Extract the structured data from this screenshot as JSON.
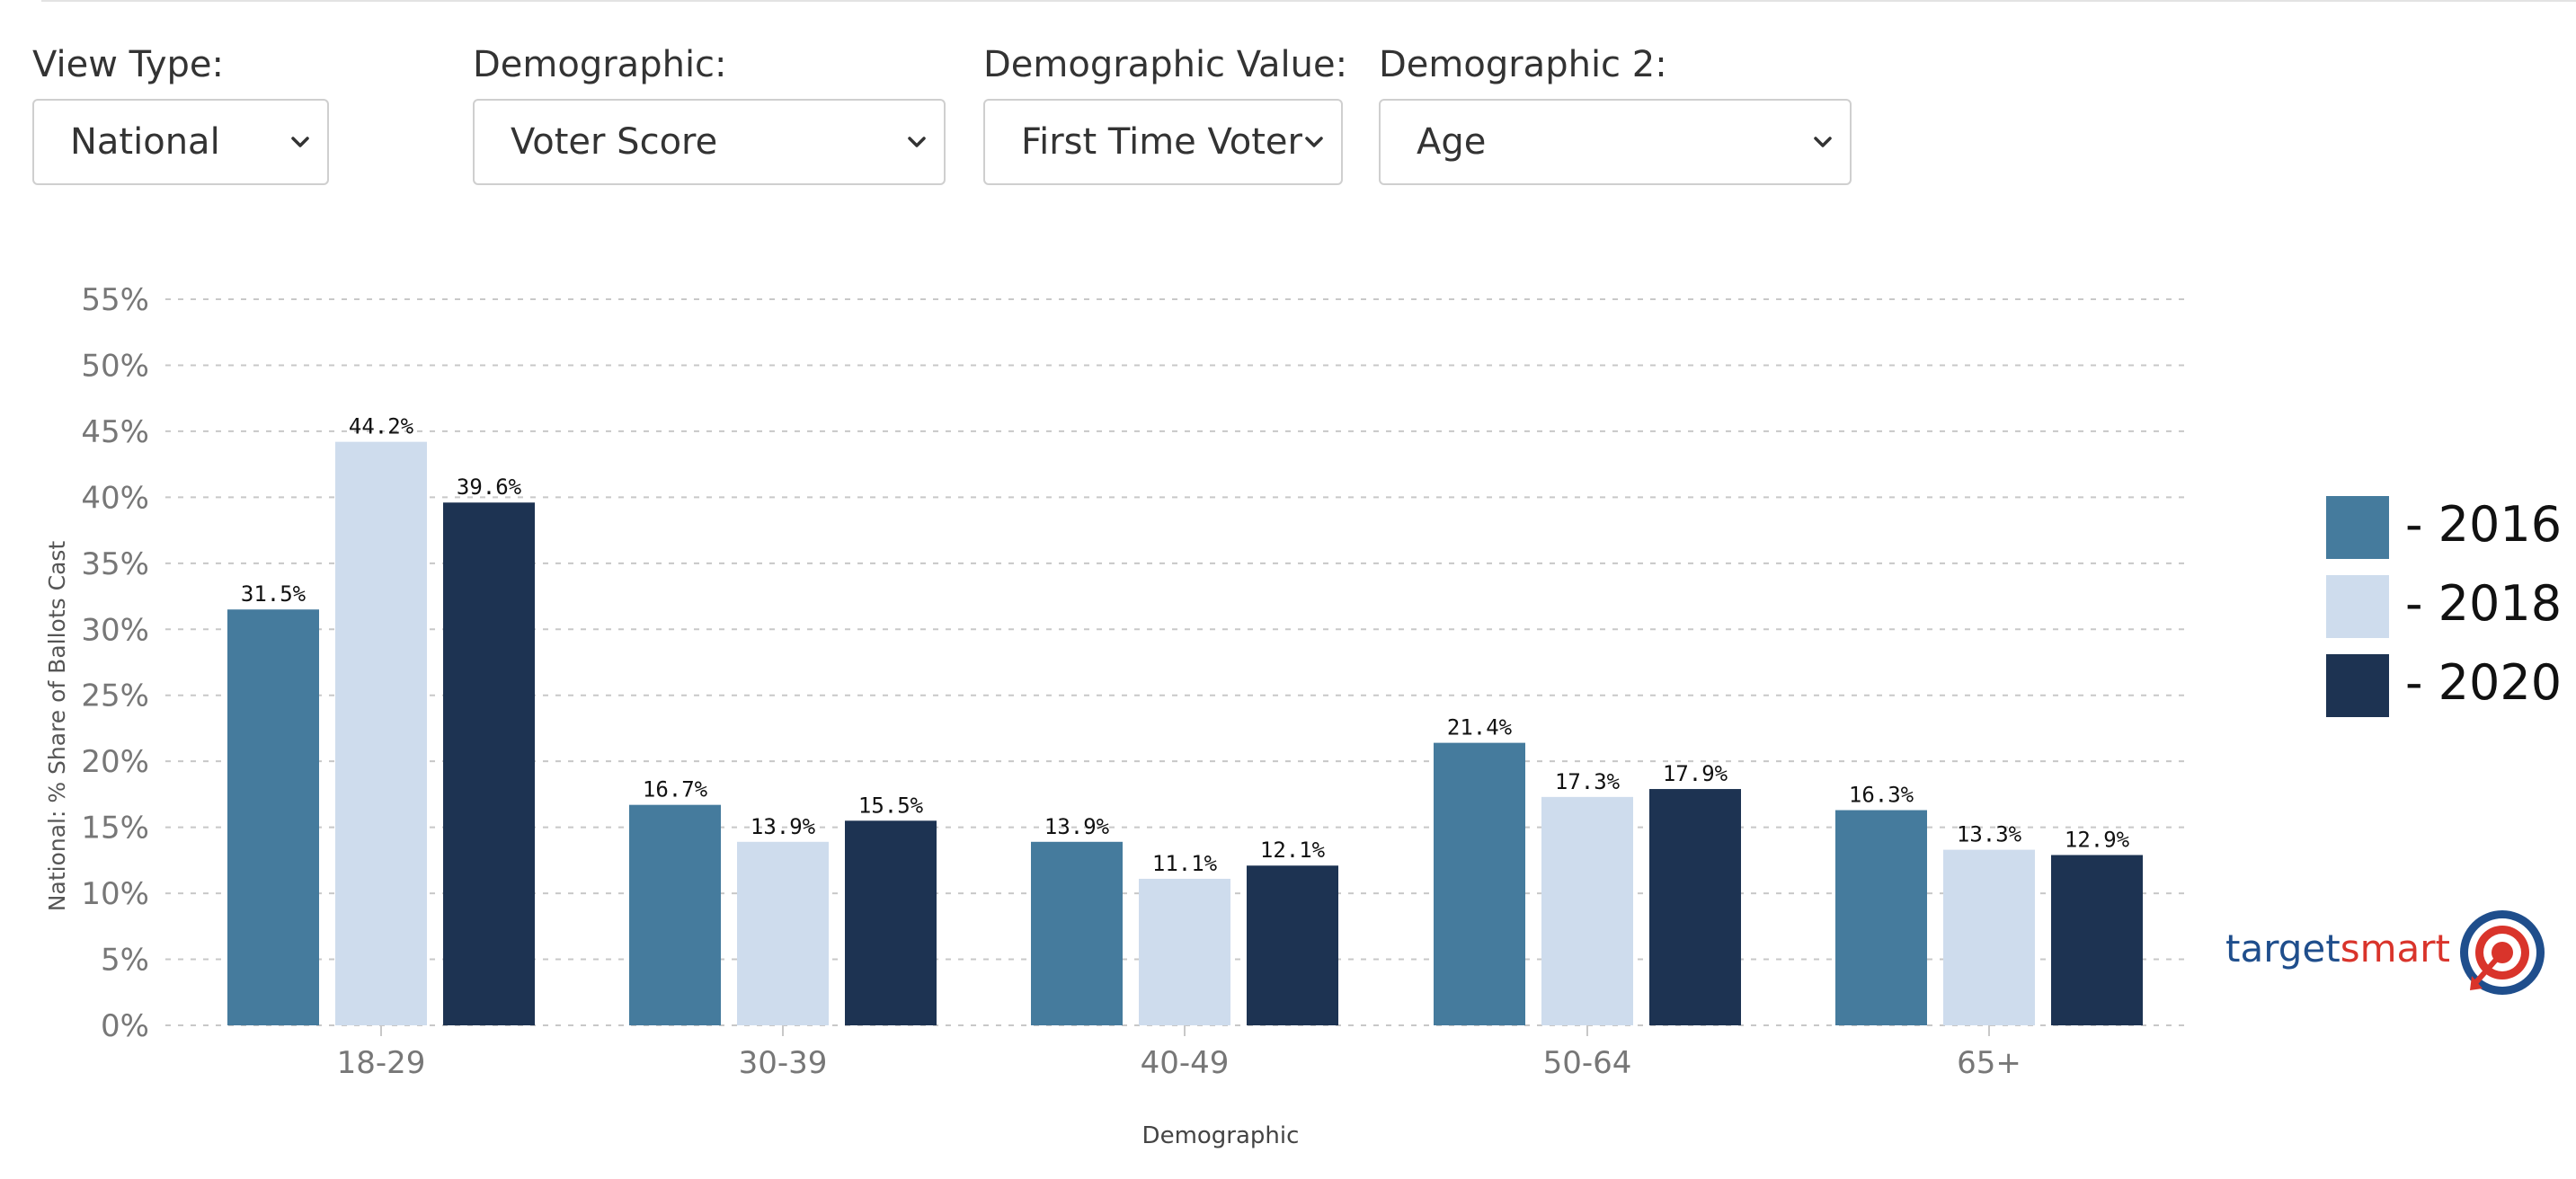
{
  "filters": [
    {
      "label": "View Type:",
      "value": "National"
    },
    {
      "label": "Demographic:",
      "value": "Voter Score"
    },
    {
      "label": "Demographic Value:",
      "value": "First Time Voter"
    },
    {
      "label": "Demographic 2:",
      "value": "Age"
    }
  ],
  "logo": {
    "part1": "target",
    "part2": "smart",
    "color1": "#1f4e8c",
    "color2": "#d9342b"
  },
  "chart_data": {
    "type": "bar",
    "categories": [
      "18-29",
      "30-39",
      "40-49",
      "50-64",
      "65+"
    ],
    "series": [
      {
        "name": "- 2016",
        "color": "#457b9d",
        "values": [
          31.5,
          16.7,
          13.9,
          21.4,
          16.3
        ],
        "labels": [
          "31.5%",
          "16.7%",
          "13.9%",
          "21.4%",
          "16.3%"
        ]
      },
      {
        "name": "- 2018",
        "color": "#cedced",
        "values": [
          44.2,
          13.9,
          11.1,
          17.3,
          13.3
        ],
        "labels": [
          "44.2%",
          "13.9%",
          "11.1%",
          "17.3%",
          "13.3%"
        ]
      },
      {
        "name": "- 2020",
        "color": "#1d3352",
        "values": [
          39.6,
          15.5,
          12.1,
          17.9,
          12.9
        ],
        "labels": [
          "39.6%",
          "15.5%",
          "12.1%",
          "17.9%",
          "12.9%"
        ]
      }
    ],
    "yticks": [
      "0%",
      "5%",
      "10%",
      "15%",
      "20%",
      "25%",
      "30%",
      "35%",
      "40%",
      "45%",
      "50%",
      "55%"
    ],
    "ylim": [
      0,
      55
    ],
    "ylabel": "National: % Share of Ballots Cast",
    "xlabel": "Demographic",
    "grid": true,
    "legend_position": "right"
  }
}
